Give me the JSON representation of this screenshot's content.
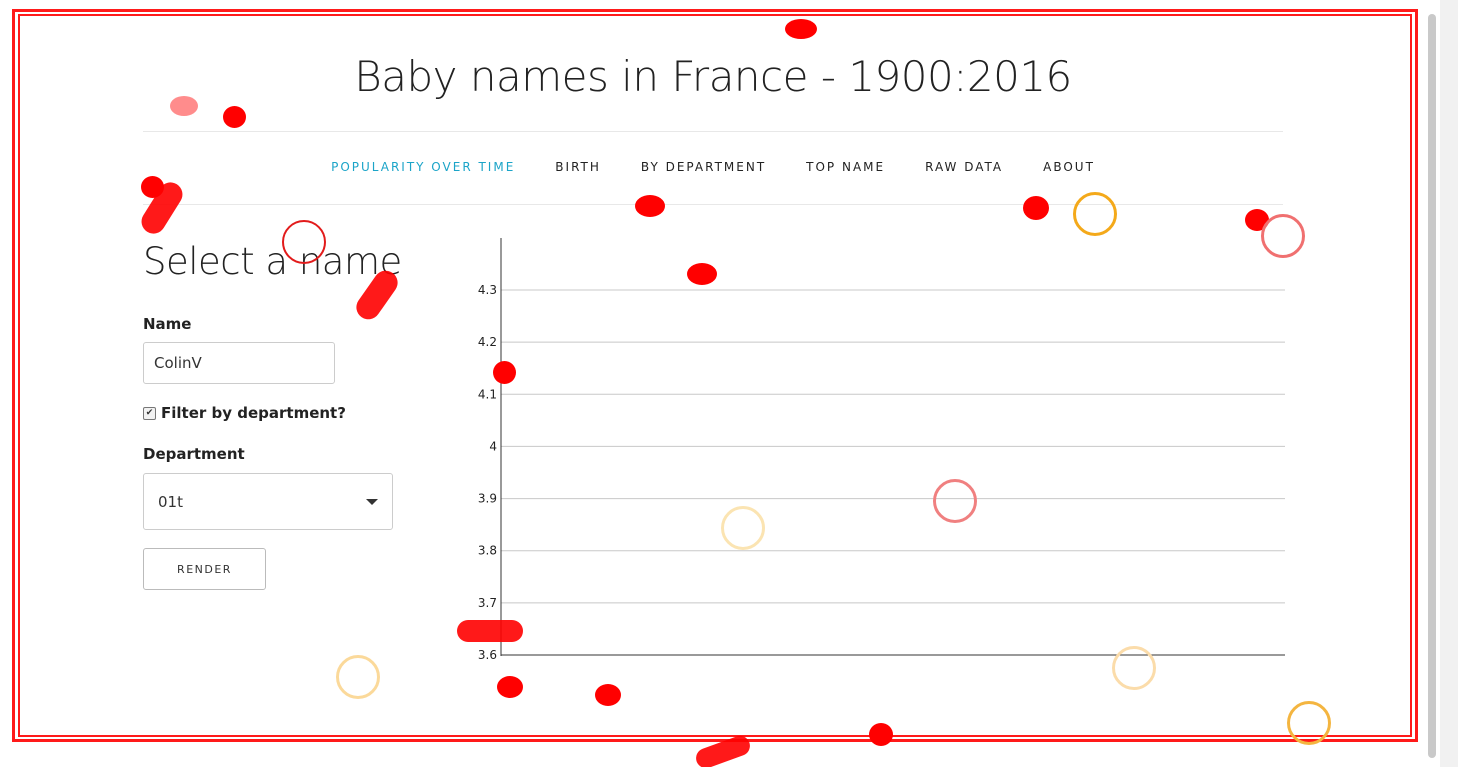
{
  "header": {
    "title": "Baby names in France - 1900:2016"
  },
  "nav": {
    "items": [
      "POPULARITY OVER TIME",
      "BIRTH",
      "BY DEPARTMENT",
      "TOP NAME",
      "RAW DATA",
      "ABOUT"
    ],
    "active_index": 0
  },
  "sidebar": {
    "title": "Select a name",
    "name_label": "Name",
    "name_value": "ColinV",
    "filter_label": "Filter by department?",
    "filter_checked": true,
    "department_label": "Department",
    "department_value": "01t",
    "render_label": "RENDER"
  },
  "colors": {
    "accent": "#1ba4c8",
    "annotation_red": "#ff0000",
    "annotation_orange": "#f4a91a"
  },
  "chart_data": {
    "type": "line",
    "title": "",
    "xlabel": "",
    "ylabel": "",
    "ylim": [
      3.6,
      4.3
    ],
    "y_ticks": [
      "3.6",
      "3.7",
      "3.8",
      "3.9",
      "4",
      "4.1",
      "4.2",
      "4.3"
    ],
    "series": [],
    "grid": true
  }
}
